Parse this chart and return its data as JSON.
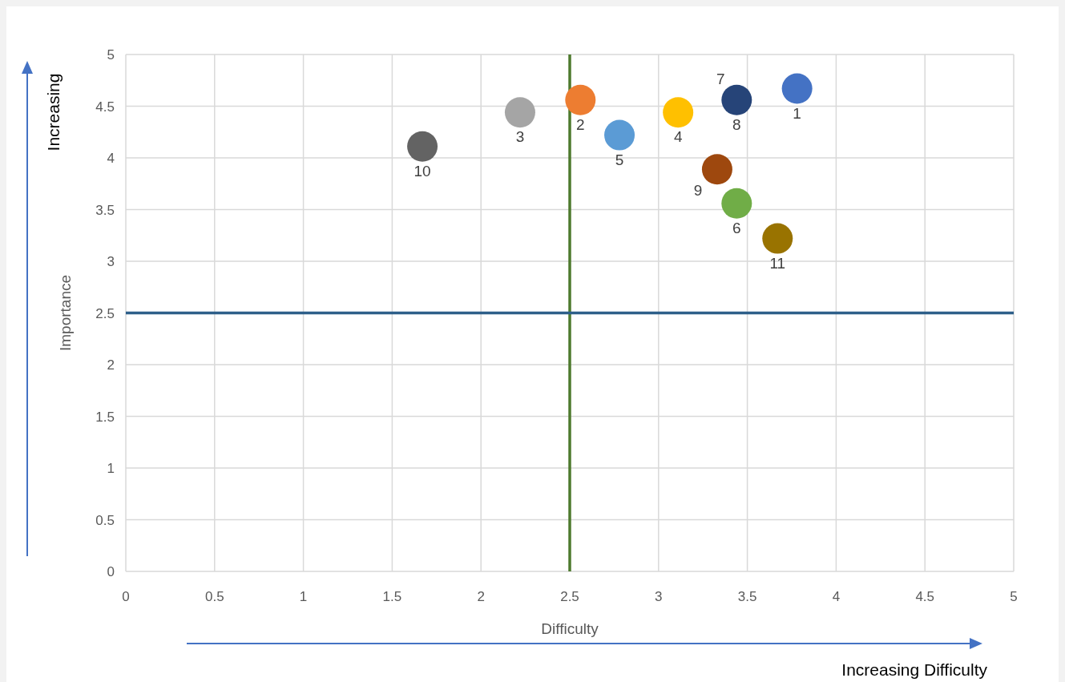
{
  "chart_data": {
    "type": "scatter",
    "xlabel": "Difficulty",
    "ylabel": "Importance",
    "xlim": [
      0,
      5
    ],
    "ylim": [
      0,
      5
    ],
    "xticks": [
      0,
      0.5,
      1,
      1.5,
      2,
      2.5,
      3,
      3.5,
      4,
      4.5,
      5
    ],
    "yticks": [
      0,
      0.5,
      1,
      1.5,
      2,
      2.5,
      3,
      3.5,
      4,
      4.5,
      5
    ],
    "grid": true,
    "marker": "circle",
    "legend": false,
    "series": [
      {
        "name": "1",
        "color": "#4472c4",
        "x": [
          3.78
        ],
        "values": [
          4.67
        ]
      },
      {
        "name": "2",
        "color": "#ed7d31",
        "x": [
          2.56
        ],
        "values": [
          4.56
        ]
      },
      {
        "name": "3",
        "color": "#a5a5a5",
        "x": [
          2.22
        ],
        "values": [
          4.44
        ]
      },
      {
        "name": "4",
        "color": "#ffc000",
        "x": [
          3.11
        ],
        "values": [
          4.44
        ]
      },
      {
        "name": "5",
        "color": "#5b9bd5",
        "x": [
          2.78
        ],
        "values": [
          4.22
        ]
      },
      {
        "name": "6",
        "color": "#70ad47",
        "x": [
          3.44
        ],
        "values": [
          3.56
        ]
      },
      {
        "name": "8",
        "color": "#264478",
        "x": [
          3.44
        ],
        "values": [
          4.56
        ]
      },
      {
        "name": "9",
        "color": "#9e480e",
        "x": [
          3.33
        ],
        "values": [
          3.89
        ]
      },
      {
        "name": "10",
        "color": "#636363",
        "x": [
          1.67
        ],
        "values": [
          4.11
        ]
      },
      {
        "name": "11",
        "color": "#997300",
        "x": [
          3.67
        ],
        "values": [
          3.22
        ]
      }
    ],
    "ref_lines": [
      {
        "axis": "x",
        "value": 2.5,
        "color": "#4e7a2e"
      },
      {
        "axis": "y",
        "value": 2.5,
        "color": "#2e5f8a"
      }
    ],
    "annotations": [
      "Increasing",
      "Increasing Difficulty",
      {
        "text": "7",
        "x": 3.44,
        "y": 4.56
      }
    ]
  }
}
